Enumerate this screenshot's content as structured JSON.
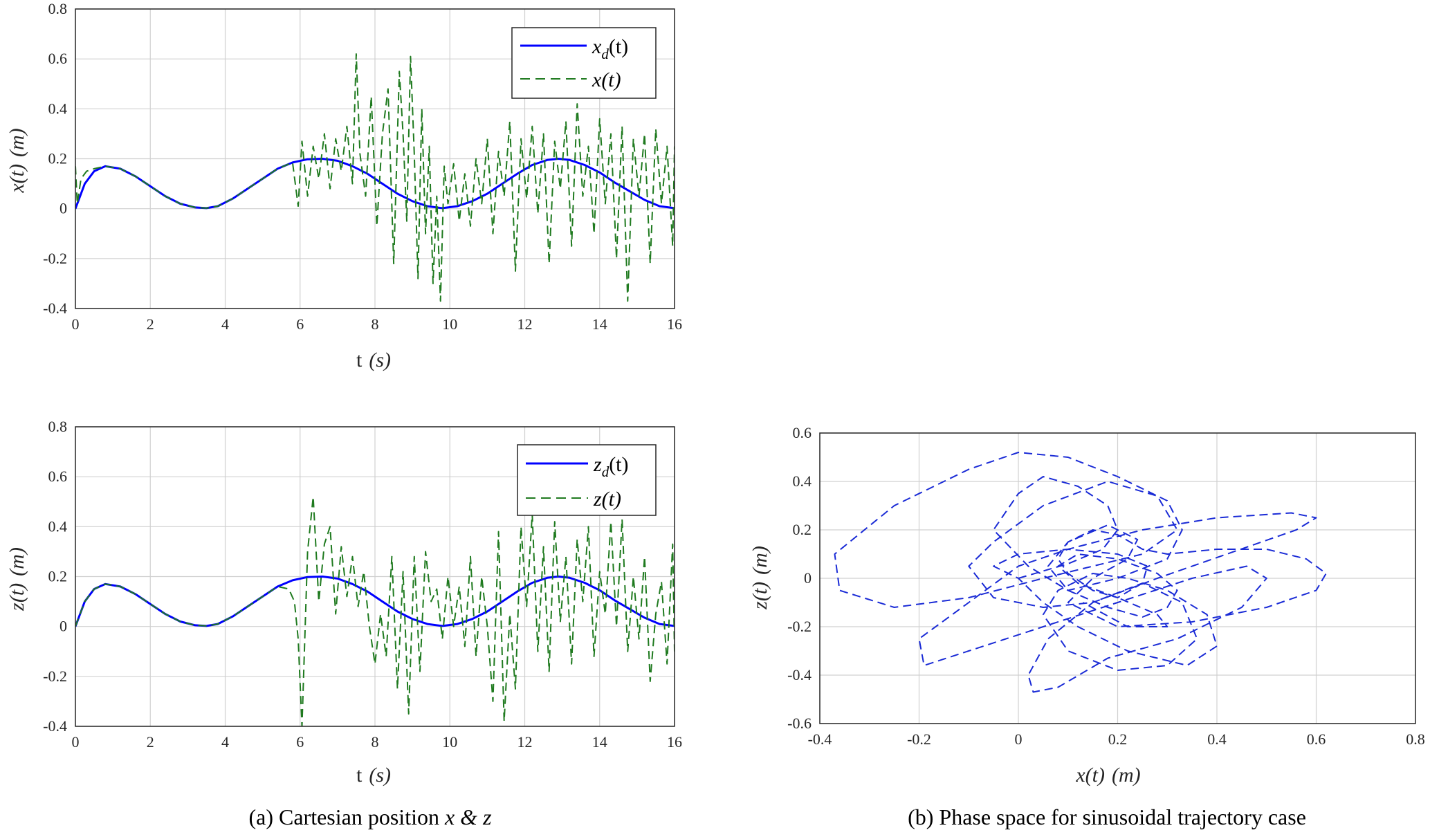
{
  "colors": {
    "desired": "#0000ff",
    "actual": "#1f7a1f",
    "phase": "#1a2bd6",
    "grid": "#d0d0d0",
    "axis": "#262626"
  },
  "chart_data": [
    {
      "id": "x_plot",
      "type": "line",
      "xlabel": "t (s)",
      "ylabel": "x(t) (m)",
      "xlim": [
        0,
        16
      ],
      "ylim": [
        -0.4,
        0.8
      ],
      "xticks": [
        "0",
        "2",
        "4",
        "6",
        "8",
        "10",
        "12",
        "14",
        "16"
      ],
      "yticks": [
        "-0.4",
        "-0.2",
        "0",
        "0.2",
        "0.4",
        "0.6",
        "0.8"
      ],
      "grid": true,
      "legend_position": "top-right",
      "series": [
        {
          "name": "x_d(t)",
          "style": "solid",
          "color": "#0000ff",
          "x": [
            0,
            0.25,
            0.5,
            0.8,
            1.2,
            1.6,
            2.0,
            2.4,
            2.8,
            3.2,
            3.5,
            3.8,
            4.2,
            4.6,
            5.0,
            5.4,
            5.8,
            6.2,
            6.6,
            7.0,
            7.4,
            7.8,
            8.2,
            8.6,
            9.0,
            9.4,
            9.8,
            10.2,
            10.6,
            11.0,
            11.4,
            11.8,
            12.2,
            12.6,
            12.9,
            13.2,
            13.6,
            14.0,
            14.4,
            14.8,
            15.2,
            15.6,
            16.0
          ],
          "y": [
            0,
            0.1,
            0.15,
            0.17,
            0.16,
            0.13,
            0.09,
            0.05,
            0.02,
            0.005,
            0.002,
            0.01,
            0.04,
            0.08,
            0.12,
            0.16,
            0.185,
            0.198,
            0.2,
            0.192,
            0.17,
            0.14,
            0.1,
            0.06,
            0.03,
            0.01,
            0.002,
            0.01,
            0.03,
            0.06,
            0.1,
            0.14,
            0.175,
            0.195,
            0.2,
            0.195,
            0.175,
            0.145,
            0.105,
            0.07,
            0.035,
            0.01,
            0.002
          ]
        },
        {
          "name": "x(t)",
          "style": "dashed",
          "color": "#1f7a1f",
          "x": [
            0,
            0.05,
            0.15,
            0.3,
            0.5,
            0.8,
            1.2,
            1.6,
            2.0,
            2.4,
            2.8,
            3.2,
            3.5,
            3.8,
            4.2,
            4.6,
            5.0,
            5.4,
            5.8,
            5.95,
            6.05,
            6.2,
            6.35,
            6.5,
            6.65,
            6.8,
            6.95,
            7.1,
            7.25,
            7.4,
            7.5,
            7.6,
            7.75,
            7.9,
            8.05,
            8.2,
            8.35,
            8.5,
            8.65,
            8.75,
            8.85,
            8.95,
            9.05,
            9.15,
            9.25,
            9.35,
            9.45,
            9.55,
            9.65,
            9.75,
            9.85,
            9.95,
            10.1,
            10.25,
            10.4,
            10.55,
            10.7,
            10.85,
            11.0,
            11.15,
            11.3,
            11.45,
            11.6,
            11.75,
            11.9,
            12.05,
            12.2,
            12.35,
            12.5,
            12.65,
            12.8,
            12.95,
            13.1,
            13.25,
            13.4,
            13.55,
            13.7,
            13.85,
            14.0,
            14.15,
            14.3,
            14.45,
            14.6,
            14.75,
            14.9,
            15.05,
            15.2,
            15.35,
            15.5,
            15.65,
            15.8,
            15.95,
            16.0
          ],
          "y": [
            0.17,
            0.02,
            0.12,
            0.15,
            0.16,
            0.17,
            0.16,
            0.13,
            0.09,
            0.05,
            0.02,
            0.005,
            0.002,
            0.01,
            0.04,
            0.08,
            0.12,
            0.16,
            0.185,
            0.01,
            0.27,
            0.05,
            0.25,
            0.12,
            0.3,
            0.08,
            0.28,
            0.15,
            0.33,
            0.1,
            0.62,
            0.22,
            0.05,
            0.45,
            -0.07,
            0.3,
            0.48,
            -0.22,
            0.55,
            0.3,
            -0.05,
            0.61,
            0.22,
            -0.28,
            0.4,
            -0.1,
            0.25,
            -0.3,
            0.05,
            -0.37,
            0.17,
            0.02,
            0.18,
            -0.05,
            0.14,
            -0.07,
            0.2,
            0.02,
            0.28,
            -0.1,
            0.23,
            0.05,
            0.35,
            -0.25,
            0.28,
            0.04,
            0.33,
            -0.02,
            0.3,
            -0.22,
            0.27,
            0.08,
            0.35,
            -0.15,
            0.42,
            0.05,
            0.25,
            -0.1,
            0.36,
            0.02,
            0.3,
            -0.2,
            0.33,
            -0.37,
            0.28,
            0.05,
            0.3,
            -0.22,
            0.32,
            0.02,
            0.25,
            -0.15,
            0.25
          ]
        }
      ]
    },
    {
      "id": "z_plot",
      "type": "line",
      "xlabel": "t (s)",
      "ylabel": "z(t) (m)",
      "xlim": [
        0,
        16
      ],
      "ylim": [
        -0.4,
        0.8
      ],
      "xticks": [
        "0",
        "2",
        "4",
        "6",
        "8",
        "10",
        "12",
        "14",
        "16"
      ],
      "yticks": [
        "-0.4",
        "-0.2",
        "0",
        "0.2",
        "0.4",
        "0.6",
        "0.8"
      ],
      "grid": true,
      "legend_position": "top-right",
      "series": [
        {
          "name": "z_d(t)",
          "style": "solid",
          "color": "#0000ff",
          "x": [
            0,
            0.25,
            0.5,
            0.8,
            1.2,
            1.6,
            2.0,
            2.4,
            2.8,
            3.2,
            3.5,
            3.8,
            4.2,
            4.6,
            5.0,
            5.4,
            5.8,
            6.2,
            6.6,
            7.0,
            7.4,
            7.8,
            8.2,
            8.6,
            9.0,
            9.4,
            9.8,
            10.2,
            10.6,
            11.0,
            11.4,
            11.8,
            12.2,
            12.6,
            12.9,
            13.2,
            13.6,
            14.0,
            14.4,
            14.8,
            15.2,
            15.6,
            16.0
          ],
          "y": [
            0,
            0.1,
            0.15,
            0.17,
            0.16,
            0.13,
            0.09,
            0.05,
            0.02,
            0.005,
            0.002,
            0.01,
            0.04,
            0.08,
            0.12,
            0.16,
            0.185,
            0.198,
            0.2,
            0.192,
            0.17,
            0.14,
            0.1,
            0.06,
            0.03,
            0.01,
            0.002,
            0.01,
            0.03,
            0.06,
            0.1,
            0.14,
            0.175,
            0.195,
            0.2,
            0.195,
            0.175,
            0.145,
            0.105,
            0.07,
            0.035,
            0.01,
            0.002
          ]
        },
        {
          "name": "z(t)",
          "style": "dashed",
          "color": "#1f7a1f",
          "x": [
            0,
            0.25,
            0.5,
            0.8,
            1.2,
            1.6,
            2.0,
            2.4,
            2.8,
            3.2,
            3.5,
            3.8,
            4.2,
            4.6,
            5.0,
            5.4,
            5.7,
            5.85,
            5.95,
            6.05,
            6.2,
            6.35,
            6.5,
            6.65,
            6.8,
            6.95,
            7.1,
            7.25,
            7.4,
            7.55,
            7.7,
            7.85,
            8.0,
            8.15,
            8.3,
            8.45,
            8.6,
            8.75,
            8.9,
            9.05,
            9.2,
            9.35,
            9.5,
            9.65,
            9.8,
            9.95,
            10.1,
            10.25,
            10.4,
            10.55,
            10.7,
            10.85,
            11.0,
            11.15,
            11.3,
            11.45,
            11.6,
            11.75,
            11.9,
            12.05,
            12.2,
            12.35,
            12.5,
            12.65,
            12.8,
            12.95,
            13.1,
            13.25,
            13.4,
            13.55,
            13.7,
            13.85,
            14.0,
            14.15,
            14.3,
            14.45,
            14.6,
            14.75,
            14.9,
            15.05,
            15.2,
            15.35,
            15.5,
            15.65,
            15.8,
            15.95,
            16.0
          ],
          "y": [
            0,
            0.1,
            0.15,
            0.17,
            0.16,
            0.13,
            0.09,
            0.05,
            0.02,
            0.005,
            0.002,
            0.01,
            0.04,
            0.08,
            0.12,
            0.16,
            0.15,
            0.1,
            -0.05,
            -0.4,
            0.3,
            0.52,
            0.1,
            0.33,
            0.4,
            0.05,
            0.32,
            0.12,
            0.28,
            0.08,
            0.22,
            0.0,
            -0.15,
            0.05,
            -0.12,
            0.28,
            -0.25,
            0.22,
            -0.35,
            0.28,
            -0.18,
            0.3,
            0.1,
            0.15,
            -0.05,
            0.2,
            0.0,
            0.16,
            -0.08,
            0.28,
            -0.12,
            0.2,
            0.0,
            -0.3,
            0.38,
            -0.38,
            0.05,
            -0.25,
            0.4,
            0.08,
            0.45,
            -0.1,
            0.32,
            -0.18,
            0.42,
            0.02,
            0.28,
            -0.15,
            0.35,
            0.1,
            0.4,
            -0.12,
            0.22,
            0.05,
            0.42,
            0.0,
            0.43,
            -0.1,
            0.2,
            -0.05,
            0.28,
            -0.22,
            0.05,
            0.18,
            -0.15,
            0.33,
            -0.1
          ]
        }
      ]
    },
    {
      "id": "phase_plot",
      "type": "line",
      "xlabel": "x(t) (m)",
      "ylabel": "z(t) (m)",
      "xlim": [
        -0.4,
        0.8
      ],
      "ylim": [
        -0.6,
        0.6
      ],
      "xticks": [
        "-0.4",
        "-0.2",
        "0",
        "0.2",
        "0.4",
        "0.6",
        "0.8"
      ],
      "yticks": [
        "-0.6",
        "-0.4",
        "-0.2",
        "0",
        "0.2",
        "0.4",
        "0.6"
      ],
      "grid": true,
      "series": [
        {
          "style": "dashed",
          "color": "#1a2bd6",
          "x": [
            0.0,
            0.1,
            0.17,
            0.2,
            0.18,
            0.12,
            0.05,
            0.0,
            -0.05,
            0.02,
            0.1,
            0.2,
            0.3,
            0.33,
            0.3,
            0.2,
            0.1,
            0.0,
            -0.1,
            -0.25,
            -0.37,
            -0.36,
            -0.25,
            -0.1,
            0.05,
            0.15,
            0.25,
            0.32,
            0.28,
            0.18,
            0.05,
            -0.05,
            -0.1,
            -0.05,
            0.05,
            0.15,
            0.28,
            0.42,
            0.56,
            0.6,
            0.55,
            0.4,
            0.25,
            0.1,
            0.0,
            -0.1,
            -0.2,
            -0.19,
            -0.1,
            0.05,
            0.2,
            0.35,
            0.46,
            0.5,
            0.45,
            0.32,
            0.18,
            0.08,
            0.03,
            0.02,
            0.06,
            0.15,
            0.25,
            0.33,
            0.36,
            0.3,
            0.2,
            0.1,
            0.05,
            0.08,
            0.15,
            0.22,
            0.3,
            0.38,
            0.4,
            0.34,
            0.22,
            0.12,
            0.05,
            0.0,
            -0.05,
            0.0,
            0.1,
            0.2,
            0.26,
            0.25,
            0.2,
            0.15,
            0.1,
            0.08,
            0.1,
            0.15,
            0.2,
            0.25,
            0.3,
            0.4,
            0.5,
            0.58,
            0.62,
            0.6,
            0.5,
            0.35,
            0.2,
            0.1,
            0.15,
            0.22,
            0.24,
            0.18,
            0.1,
            0.06,
            0.1,
            0.18,
            0.25,
            0.3,
            0.32,
            0.28,
            0.2,
            0.12,
            0.08,
            0.12,
            0.2,
            0.28,
            0.3,
            0.22,
            0.13
          ],
          "y": [
            0.0,
            0.06,
            0.12,
            0.2,
            0.3,
            0.38,
            0.42,
            0.35,
            0.2,
            0.05,
            -0.05,
            0.0,
            0.08,
            0.2,
            0.32,
            0.42,
            0.5,
            0.52,
            0.45,
            0.3,
            0.1,
            -0.05,
            -0.12,
            -0.08,
            0.0,
            0.05,
            0.1,
            0.2,
            0.34,
            0.4,
            0.3,
            0.15,
            0.05,
            -0.08,
            -0.12,
            -0.1,
            0.0,
            0.1,
            0.2,
            0.25,
            0.27,
            0.25,
            0.2,
            0.12,
            0.05,
            -0.1,
            -0.25,
            -0.36,
            -0.3,
            -0.2,
            -0.1,
            0.0,
            0.05,
            0.0,
            -0.12,
            -0.25,
            -0.33,
            -0.45,
            -0.47,
            -0.4,
            -0.25,
            -0.1,
            -0.02,
            -0.1,
            -0.25,
            -0.36,
            -0.38,
            -0.3,
            -0.15,
            -0.05,
            0.02,
            0.0,
            -0.05,
            -0.15,
            -0.28,
            -0.36,
            -0.3,
            -0.2,
            -0.1,
            0.0,
            0.05,
            0.1,
            0.12,
            0.1,
            0.05,
            -0.02,
            -0.08,
            -0.05,
            0.02,
            0.08,
            0.15,
            0.2,
            0.18,
            0.12,
            0.1,
            0.12,
            0.12,
            0.08,
            0.02,
            -0.05,
            -0.12,
            -0.18,
            -0.2,
            -0.1,
            0.0,
            0.08,
            0.16,
            0.22,
            0.15,
            0.05,
            -0.05,
            -0.12,
            -0.16,
            -0.12,
            -0.05,
            0.02,
            0.08,
            0.1,
            0.05,
            -0.02,
            -0.08,
            -0.15,
            -0.2,
            -0.2,
            -0.1
          ]
        }
      ]
    }
  ],
  "captions": {
    "a_prefix": "(a) Cartesian position",
    "a_var1": "x",
    "a_amp": "&",
    "a_var2": "z",
    "b": "(b) Phase space for sinusoidal trajectory case"
  },
  "legend_x": {
    "item1_main": "x",
    "item1_sub": "d",
    "item1_rest": "(t)",
    "item2": "x(t)"
  },
  "legend_z": {
    "item1_main": "z",
    "item1_sub": "d",
    "item1_rest": "(t)",
    "item2": "z(t)"
  },
  "labels": {
    "t_label_main": "t",
    "t_label_unit": "(s)",
    "x_label_main": "x(t)",
    "z_label_main": "z(t)",
    "m_unit": "(m)"
  }
}
